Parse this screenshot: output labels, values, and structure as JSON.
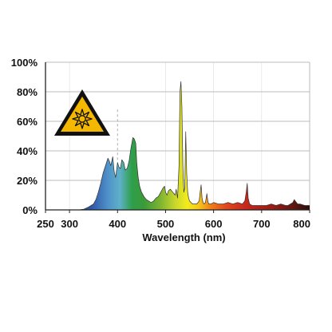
{
  "chart_data": {
    "type": "area",
    "title": "",
    "xlabel": "Wavelength (nm)",
    "ylabel": "",
    "xlim": [
      250,
      800
    ],
    "ylim": [
      0,
      100
    ],
    "x_ticks": [
      250,
      300,
      400,
      500,
      600,
      700,
      800
    ],
    "y_ticks": [
      0,
      20,
      40,
      60,
      80,
      100
    ],
    "x_tick_labels": [
      "250",
      "300",
      "400",
      "500",
      "600",
      "700",
      "800"
    ],
    "y_tick_labels": [
      "0%",
      "20%",
      "40%",
      "60%",
      "80%",
      "100%"
    ],
    "grid": true,
    "legend": "none",
    "reference_line_x": 400,
    "warning_icon": "uv-warning-triangle-icon",
    "colors": {
      "axis": "#222222",
      "grid": "#bbbbbb",
      "reference_line": "#aaaaaa",
      "curve": "#333333",
      "warning_fill": "#f5b800",
      "warning_stroke": "#111111"
    },
    "series": [
      {
        "x": [
          310,
          320,
          330,
          340,
          350,
          355,
          360,
          365,
          370,
          375,
          380,
          383,
          386,
          390,
          393,
          396,
          400,
          403,
          406,
          409,
          413,
          416,
          420,
          424,
          428,
          432,
          435,
          438,
          440,
          443,
          446,
          450,
          455,
          460,
          465,
          470,
          475,
          480,
          485,
          490,
          495,
          498,
          500,
          503,
          506,
          510,
          515,
          520,
          522,
          525,
          528,
          530,
          532,
          534,
          536,
          538,
          540,
          542,
          544,
          546,
          548,
          550,
          553,
          556,
          560,
          565,
          570,
          572,
          574,
          576,
          578,
          580,
          583,
          586,
          588,
          590,
          595,
          600,
          610,
          620,
          630,
          640,
          650,
          660,
          665,
          668,
          670,
          672,
          675,
          680,
          690,
          700,
          710,
          720,
          730,
          740,
          750,
          755,
          760,
          765,
          768,
          770,
          775,
          780,
          790,
          800
        ],
        "values": [
          0,
          0,
          0.5,
          2,
          4,
          7,
          12,
          18,
          25,
          30,
          35,
          33,
          30,
          36,
          26,
          22,
          32,
          29,
          28,
          34,
          32,
          27,
          28,
          33,
          42,
          49,
          48,
          45,
          32,
          22,
          16,
          12,
          9,
          7,
          6,
          5,
          6,
          8,
          9,
          12,
          15,
          16,
          12,
          10,
          13,
          14,
          12,
          10,
          14,
          8,
          30,
          80,
          87,
          70,
          30,
          12,
          15,
          53,
          25,
          12,
          8,
          6,
          5,
          4,
          4,
          4,
          6,
          12,
          17,
          8,
          5,
          4,
          5,
          11,
          6,
          4,
          4,
          5,
          4,
          4,
          5,
          4,
          5,
          4,
          6,
          12,
          18,
          8,
          4,
          3,
          3,
          3,
          3,
          4,
          3,
          4,
          3,
          3,
          4,
          5,
          7,
          6,
          4,
          4,
          3,
          3
        ]
      }
    ]
  }
}
